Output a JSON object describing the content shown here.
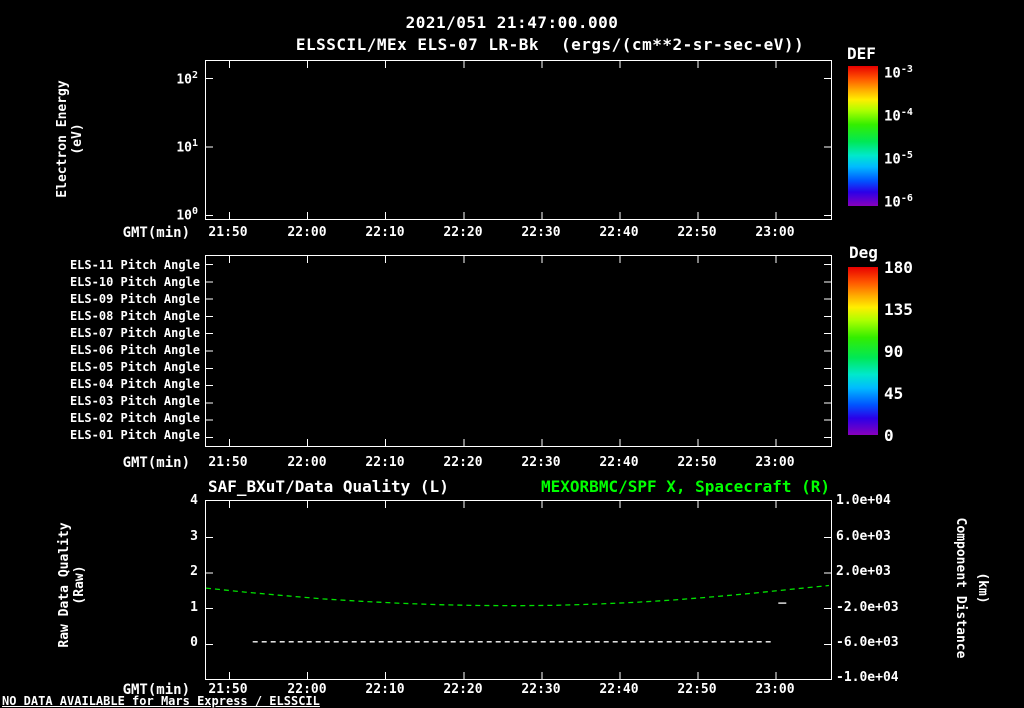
{
  "colors": {
    "background": "#000000",
    "text": "#ffffff",
    "accent_green": "#00ff00",
    "curve_green": "#00e000"
  },
  "header": {
    "timestamp": "2021/051 21:47:00.000",
    "title": "ELSSCIL/MEx ELS-07 LR-Bk",
    "units": "(ergs/(cm**2-sr-sec-eV))"
  },
  "axis": {
    "xlabel": "GMT(min)",
    "xticks": [
      "21:50",
      "22:00",
      "22:10",
      "22:20",
      "22:30",
      "22:40",
      "22:50",
      "23:00"
    ]
  },
  "panel1": {
    "ylabel": "Electron Energy",
    "ylabel_unit": "(eV)",
    "yticks": [
      {
        "base": "10",
        "exp": "2"
      },
      {
        "base": "10",
        "exp": "1"
      },
      {
        "base": "10",
        "exp": "0"
      }
    ],
    "colorbar": {
      "title": "DEF",
      "ticks": [
        {
          "base": "10",
          "exp": "-3"
        },
        {
          "base": "10",
          "exp": "-4"
        },
        {
          "base": "10",
          "exp": "-5"
        },
        {
          "base": "10",
          "exp": "-6"
        }
      ]
    }
  },
  "panel2": {
    "rows": [
      "ELS-11 Pitch Angle",
      "ELS-10 Pitch Angle",
      "ELS-09 Pitch Angle",
      "ELS-08 Pitch Angle",
      "ELS-07 Pitch Angle",
      "ELS-06 Pitch Angle",
      "ELS-05 Pitch Angle",
      "ELS-04 Pitch Angle",
      "ELS-03 Pitch Angle",
      "ELS-02 Pitch Angle",
      "ELS-01 Pitch Angle"
    ],
    "colorbar": {
      "title": "Deg",
      "ticks": [
        "180",
        "135",
        "90",
        "45",
        "0"
      ]
    }
  },
  "panel3": {
    "title_left": "SAF_BXuT/Data Quality (L)",
    "title_right": "MEXORBMC/SPF X, Spacecraft (R)",
    "ylabel_left": "Raw Data Quality",
    "ylabel_left_unit": "(Raw)",
    "ylabel_right": "Component Distance",
    "ylabel_right_unit": "(km)",
    "yticks_left": [
      "4",
      "3",
      "2",
      "1",
      "0"
    ],
    "yticks_right": [
      "1.0e+04",
      "6.0e+03",
      "2.0e+03",
      "-2.0e+03",
      "-6.0e+03",
      "-1.0e+04"
    ]
  },
  "footer": {
    "message": "NO DATA AVAILABLE for Mars Express / ELSSCIL"
  },
  "chart_data": [
    {
      "type": "heatmap",
      "name": "electron-energy-spectrogram",
      "title": "ELSSCIL/MEx ELS-07 LR-Bk",
      "units": "ergs/(cm**2-sr-sec-eV)",
      "timestamp": "2021/051 21:47:00.000",
      "xlabel": "GMT(min)",
      "x_ticks": [
        "21:50",
        "22:00",
        "22:10",
        "22:20",
        "22:30",
        "22:40",
        "22:50",
        "23:00"
      ],
      "x_range": [
        "21:47",
        "23:07"
      ],
      "ylabel": "Electron Energy (eV)",
      "y_scale": "log",
      "y_tick_values": [
        100,
        10,
        1
      ],
      "colorbar": {
        "title": "DEF",
        "scale": "log",
        "tick_values": [
          0.001,
          0.0001,
          1e-05,
          1e-06
        ],
        "gradient_top_to_bottom": [
          "#ff0000",
          "#ffff00",
          "#00ff00",
          "#00ffff",
          "#0000ff",
          "#8800bb"
        ]
      },
      "values": []
    },
    {
      "type": "heatmap",
      "name": "pitch-angle-strips",
      "rows": [
        "ELS-11 Pitch Angle",
        "ELS-10 Pitch Angle",
        "ELS-09 Pitch Angle",
        "ELS-08 Pitch Angle",
        "ELS-07 Pitch Angle",
        "ELS-06 Pitch Angle",
        "ELS-05 Pitch Angle",
        "ELS-04 Pitch Angle",
        "ELS-03 Pitch Angle",
        "ELS-02 Pitch Angle",
        "ELS-01 Pitch Angle"
      ],
      "xlabel": "GMT(min)",
      "x_ticks": [
        "21:50",
        "22:00",
        "22:10",
        "22:20",
        "22:30",
        "22:40",
        "22:50",
        "23:00"
      ],
      "x_range": [
        "21:47",
        "23:07"
      ],
      "colorbar": {
        "title": "Deg",
        "tick_values": [
          180,
          135,
          90,
          45,
          0
        ]
      },
      "values": []
    },
    {
      "type": "line",
      "name": "quality-and-spacecraft-distance",
      "title_left": "SAF_BXuT/Data Quality (L)",
      "title_right": "MEXORBMC/SPF X, Spacecraft (R)",
      "xlabel": "GMT(min)",
      "x_ticks": [
        "21:50",
        "22:00",
        "22:10",
        "22:20",
        "22:30",
        "22:40",
        "22:50",
        "23:00"
      ],
      "x_range": [
        "21:47",
        "23:07"
      ],
      "left_axis": {
        "label": "Raw Data Quality (Raw)",
        "ticks": [
          4,
          3,
          2,
          1,
          0
        ],
        "range": [
          -1,
          4
        ]
      },
      "right_axis": {
        "label": "Component Distance (km)",
        "ticks": [
          10000,
          6000,
          2000,
          -2000,
          -6000,
          -10000
        ],
        "range": [
          -10000,
          10000
        ]
      },
      "series": [
        {
          "name": "MEXORBMC-SPF-X-spacecraft",
          "axis": "right",
          "color": "#00e000",
          "style": "dashed",
          "points": [
            [
              "21:47",
              100
            ],
            [
              "21:52",
              -350
            ],
            [
              "21:57",
              -750
            ],
            [
              "22:02",
              -1120
            ],
            [
              "22:07",
              -1400
            ],
            [
              "22:12",
              -1620
            ],
            [
              "22:17",
              -1780
            ],
            [
              "22:22",
              -1880
            ],
            [
              "22:27",
              -1900
            ],
            [
              "22:32",
              -1850
            ],
            [
              "22:37",
              -1720
            ],
            [
              "22:42",
              -1520
            ],
            [
              "22:47",
              -1250
            ],
            [
              "22:52",
              -900
            ],
            [
              "22:57",
              -500
            ],
            [
              "23:02",
              -50
            ],
            [
              "23:07",
              400
            ]
          ]
        },
        {
          "name": "SAF_BXuT-data-quality",
          "axis": "left",
          "color": "#ffffff",
          "style": "dashed",
          "points": [
            [
              "21:53",
              0
            ],
            [
              "23:00",
              0
            ]
          ]
        },
        {
          "name": "quality-marker",
          "axis": "left",
          "color": "#ffffff",
          "style": "solid",
          "points": [
            [
              "23:01",
              1.1
            ]
          ]
        }
      ]
    }
  ]
}
